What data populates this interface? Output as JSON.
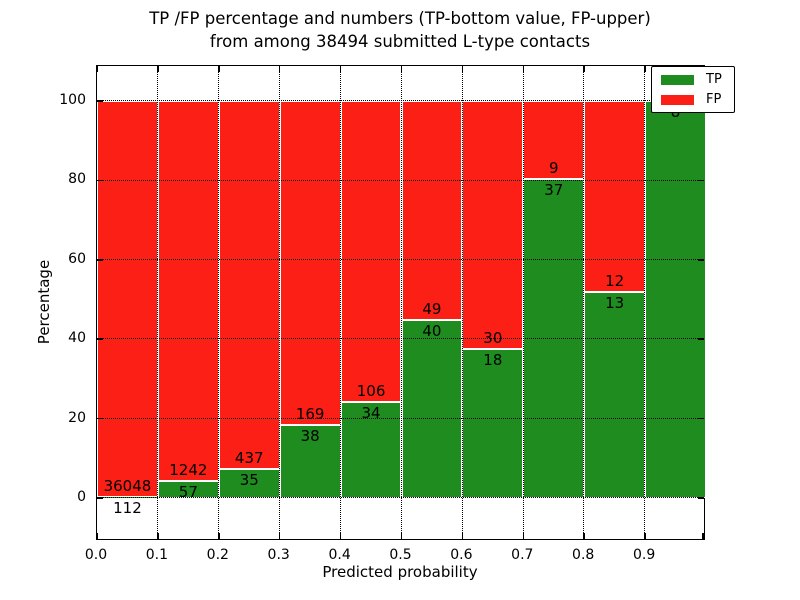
{
  "title": {
    "line1": "TP /FP percentage and numbers (TP-bottom value, FP-upper)",
    "line2": "from among 38494 submitted L-type contacts"
  },
  "axes": {
    "x_label": "Predicted probability",
    "y_label": "Percentage"
  },
  "legend": {
    "position": "upper-right",
    "items": [
      {
        "label": "TP",
        "color": "#1e8c1e"
      },
      {
        "label": "FP",
        "color": "#fb1f15"
      }
    ]
  },
  "chart_data": {
    "type": "bar",
    "stacked": true,
    "normalized_to_percent_per_bin": true,
    "title": "TP /FP percentage and numbers (TP-bottom value, FP-upper) from among 38494 submitted L-type contacts",
    "total_submitted_contacts": 38494,
    "xlabel": "Predicted probability",
    "ylabel": "Percentage",
    "xtick_labels": [
      "0.0",
      "0.1",
      "0.2",
      "0.3",
      "0.4",
      "0.5",
      "0.6",
      "0.7",
      "0.8",
      "0.9"
    ],
    "x_bin_edges": [
      0.0,
      0.1,
      0.2,
      0.3,
      0.4,
      0.5,
      0.6,
      0.7,
      0.8,
      0.9,
      1.0
    ],
    "yticks": [
      0,
      20,
      40,
      60,
      80,
      100
    ],
    "ylim": [
      -10.8,
      108.8
    ],
    "grid": true,
    "legend_position": "upper right",
    "series": [
      {
        "name": "TP",
        "color": "#1e8c1e",
        "counts": [
          112,
          57,
          35,
          38,
          34,
          40,
          18,
          37,
          13,
          8
        ],
        "label_placement": "below TP/FP boundary"
      },
      {
        "name": "FP",
        "color": "#fb1f15",
        "counts": [
          36048,
          1242,
          437,
          169,
          106,
          49,
          30,
          9,
          12,
          0
        ],
        "label_placement": "above TP/FP boundary"
      }
    ],
    "tp_percent_by_bin": [
      0.31,
      4.39,
      7.42,
      18.36,
      24.29,
      44.94,
      37.5,
      80.43,
      52.0,
      100.0
    ]
  }
}
